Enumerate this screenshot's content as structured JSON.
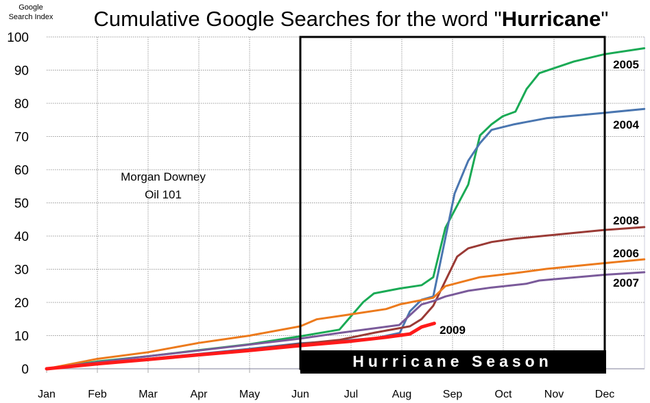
{
  "chart_data": {
    "type": "line",
    "title_prefix": "Cumulative Google Searches for the word \"",
    "title_bold": "Hurricane",
    "title_suffix": "\"",
    "ylabel_line1": "Google",
    "ylabel_line2": "Search Index",
    "annotation_line1": "Morgan Downey",
    "annotation_line2": "Oil 101",
    "season_label": "Hurricane Season",
    "season_range_months": [
      5,
      11
    ],
    "ylim": [
      0,
      100
    ],
    "yticks": [
      0,
      10,
      20,
      30,
      40,
      50,
      60,
      70,
      80,
      90,
      100
    ],
    "xlim_months": [
      0,
      11.8
    ],
    "xtick_labels": [
      "Jan",
      "Feb",
      "Mar",
      "Apr",
      "May",
      "Jun",
      "Jul",
      "Aug",
      "Sep",
      "Oct",
      "Nov",
      "Dec"
    ],
    "grid": true,
    "series": [
      {
        "name": "2005",
        "color": "#1aaa55",
        "width": 3,
        "x": [
          0,
          1,
          2,
          3,
          4,
          5,
          5.77,
          6.24,
          6.45,
          6.96,
          7.39,
          7.62,
          7.86,
          8.31,
          8.54,
          8.77,
          8.99,
          9.24,
          9.46,
          9.71,
          10.39,
          11.0,
          11.78
        ],
        "y": [
          0,
          2.2,
          3.8,
          5.6,
          7.4,
          9.8,
          11.8,
          20.1,
          22.7,
          24.2,
          25.2,
          27.6,
          42.5,
          55.5,
          70.3,
          73.7,
          76.1,
          77.5,
          84.3,
          89.1,
          92.6,
          94.8,
          96.6
        ]
      },
      {
        "name": "2004",
        "color": "#4a76b0",
        "width": 3,
        "x": [
          0,
          1,
          2,
          3,
          4,
          5,
          5.77,
          6.5,
          6.96,
          7.16,
          7.39,
          7.62,
          8.04,
          8.31,
          8.54,
          8.77,
          9.22,
          9.85,
          10.97,
          11.78
        ],
        "y": [
          0,
          1.6,
          3,
          4.5,
          6,
          7.7,
          8.4,
          9.3,
          10.8,
          17.3,
          20.8,
          21.8,
          52.8,
          62.7,
          68,
          72,
          73.7,
          75.5,
          77.1,
          78.3
        ]
      },
      {
        "name": "2008",
        "color": "#9a3a35",
        "width": 3,
        "x": [
          0,
          1,
          2,
          3,
          4,
          5,
          5.77,
          6.47,
          7.16,
          7.39,
          7.62,
          8.09,
          8.31,
          8.77,
          9.22,
          10.97,
          11.78
        ],
        "y": [
          0,
          1.5,
          2.9,
          4.3,
          5.8,
          7.5,
          8.7,
          10.9,
          12.8,
          15,
          19,
          33.8,
          36.3,
          38.2,
          39.2,
          41.8,
          42.7
        ]
      },
      {
        "name": "2006",
        "color": "#ec7a1c",
        "width": 3,
        "x": [
          0,
          1,
          2,
          3,
          4,
          5,
          5.32,
          5.77,
          6.69,
          6.96,
          7.62,
          7.86,
          8.54,
          9.22,
          9.85,
          10.97,
          11.78
        ],
        "y": [
          0,
          3,
          5,
          7.8,
          10,
          12.8,
          14.9,
          15.9,
          18,
          19.4,
          21.4,
          24.9,
          27.6,
          28.8,
          30.1,
          31.8,
          33
        ]
      },
      {
        "name": "2007",
        "color": "#7a5a9a",
        "width": 3,
        "x": [
          0,
          1,
          2,
          3,
          4,
          5,
          5.77,
          6.95,
          7.39,
          7.62,
          7.86,
          8.31,
          8.77,
          9.45,
          9.71,
          10.97,
          11.78
        ],
        "y": [
          0,
          2,
          3.8,
          5.5,
          7.3,
          9.1,
          10.8,
          13.2,
          19.4,
          20.4,
          21.8,
          23.5,
          24.5,
          25.6,
          26.6,
          28.3,
          29.1
        ]
      },
      {
        "name": "2009",
        "color": "#ff1a1a",
        "width": 5,
        "x": [
          0,
          1,
          2,
          3,
          4,
          5,
          6,
          6.69,
          7.16,
          7.39,
          7.64
        ],
        "y": [
          0,
          1.5,
          2.8,
          4.2,
          5.5,
          7,
          8.3,
          9.5,
          10.5,
          12.6,
          13.7
        ]
      }
    ]
  }
}
